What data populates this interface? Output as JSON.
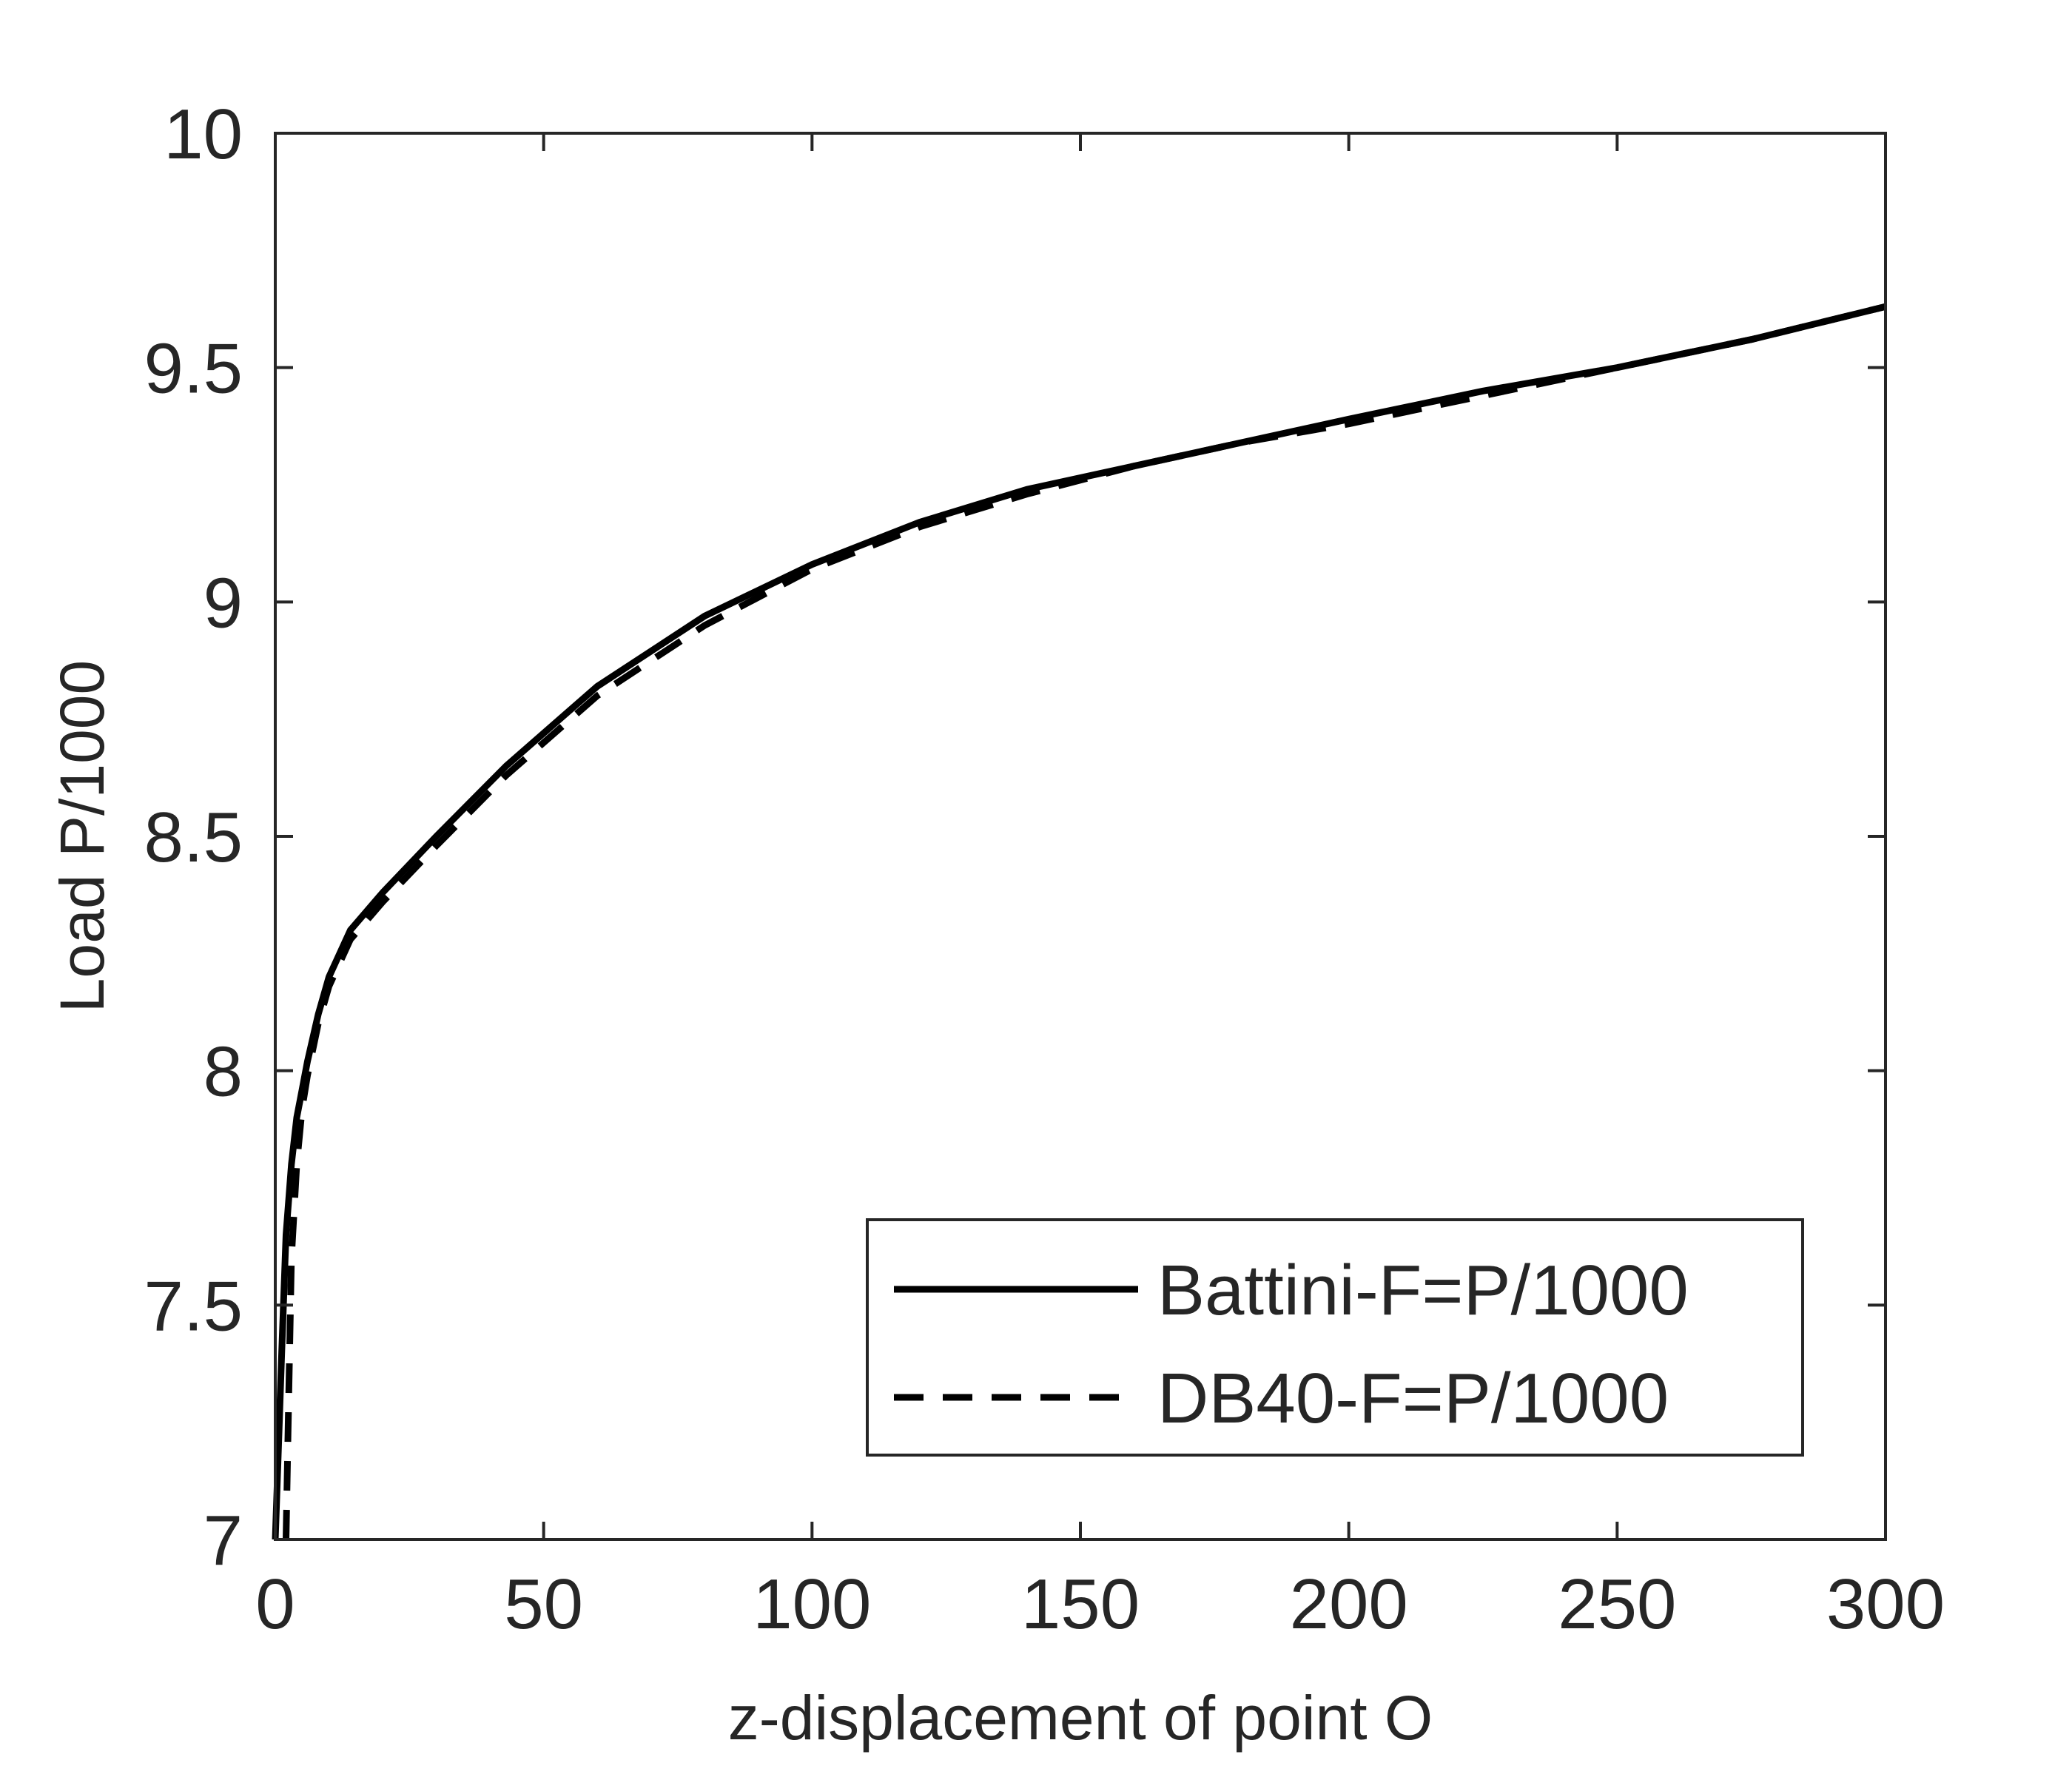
{
  "chart_data": {
    "type": "line",
    "title": "",
    "xlabel": "z-displacement of point O",
    "ylabel": "Load P/1000",
    "xlim": [
      0,
      300
    ],
    "ylim": [
      7,
      10
    ],
    "xticks": [
      0,
      50,
      100,
      150,
      200,
      250,
      300
    ],
    "yticks": [
      7,
      7.5,
      8,
      8.5,
      9,
      9.5,
      10
    ],
    "x_tick_labels": [
      "0",
      "50",
      "100",
      "150",
      "200",
      "250",
      "300"
    ],
    "y_tick_labels": [
      "7",
      "7.5",
      "8",
      "8.5",
      "9",
      "9.5",
      "10"
    ],
    "grid": false,
    "legend_position": "bottom-right",
    "series": [
      {
        "name": "Battini-F=P/1000",
        "style": "solid",
        "color": "#000000",
        "x": [
          0,
          0.6,
          1.2,
          2,
          3,
          4,
          5,
          6,
          8,
          10,
          14,
          20,
          30,
          43,
          60,
          80,
          100,
          120,
          140,
          160,
          180,
          200,
          225,
          250,
          275,
          300
        ],
        "y": [
          7.0,
          7.2,
          7.4,
          7.65,
          7.8,
          7.9,
          7.96,
          8.02,
          8.12,
          8.2,
          8.3,
          8.38,
          8.5,
          8.65,
          8.82,
          8.97,
          9.08,
          9.17,
          9.24,
          9.29,
          9.34,
          9.39,
          9.45,
          9.5,
          9.56,
          9.63
        ]
      },
      {
        "name": "DB40-F=P/1000",
        "style": "dashed",
        "color": "#000000",
        "x": [
          2,
          2.5,
          3,
          4,
          5,
          6,
          8,
          10,
          14,
          20,
          30,
          43,
          60,
          80,
          100,
          120,
          140,
          160,
          180,
          200,
          225,
          250,
          275,
          300
        ],
        "y": [
          7.0,
          7.3,
          7.6,
          7.8,
          7.92,
          7.99,
          8.1,
          8.18,
          8.28,
          8.36,
          8.48,
          8.63,
          8.8,
          8.95,
          9.07,
          9.16,
          9.23,
          9.29,
          9.34,
          9.38,
          9.44,
          9.5,
          9.56,
          9.63
        ]
      }
    ]
  }
}
